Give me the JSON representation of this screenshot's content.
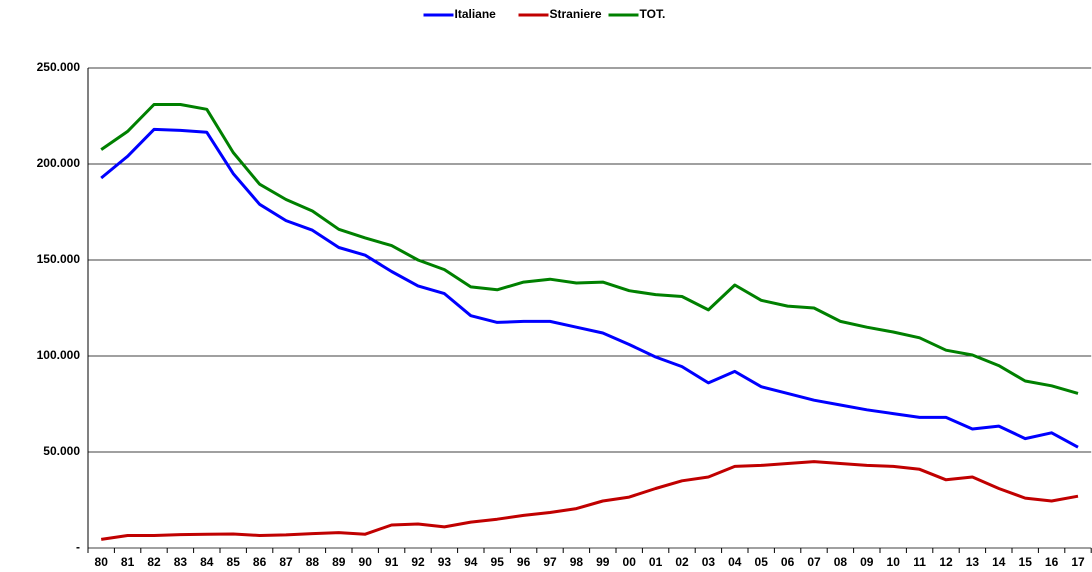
{
  "chart_data": {
    "type": "line",
    "categories": [
      "80",
      "81",
      "82",
      "83",
      "84",
      "85",
      "86",
      "87",
      "88",
      "89",
      "90",
      "91",
      "92",
      "93",
      "94",
      "95",
      "96",
      "97",
      "98",
      "99",
      "00",
      "01",
      "02",
      "03",
      "04",
      "05",
      "06",
      "07",
      "08",
      "09",
      "10",
      "11",
      "12",
      "13",
      "14",
      "15",
      "16",
      "17"
    ],
    "series": [
      {
        "name": "Italiane",
        "color": "#0000ff",
        "values": [
          192700,
          204000,
          218000,
          217500,
          216500,
          195000,
          179000,
          170500,
          165500,
          156500,
          152500,
          144000,
          136500,
          132500,
          121000,
          117500,
          118000,
          118000,
          115000,
          112000,
          106000,
          99500,
          94500,
          86000,
          92000,
          84000,
          80500,
          77000,
          74500,
          72000,
          70000,
          68000,
          68000,
          62000,
          63500,
          57000,
          60000,
          52500
        ]
      },
      {
        "name": "Straniere",
        "color": "#c00000",
        "values": [
          4500,
          6500,
          6500,
          7000,
          7200,
          7300,
          6500,
          6800,
          7500,
          8000,
          7200,
          12000,
          12500,
          11000,
          13500,
          15000,
          17000,
          18500,
          20500,
          24500,
          26500,
          31000,
          35000,
          37000,
          42500,
          43000,
          44000,
          45000,
          44000,
          43000,
          42500,
          41000,
          35500,
          37000,
          31000,
          26000,
          24500,
          27000
        ]
      },
      {
        "name": "TOT.",
        "color": "#008000",
        "values": [
          207500,
          217000,
          231000,
          231000,
          228500,
          206000,
          189500,
          181500,
          175500,
          166000,
          161500,
          157500,
          150000,
          145000,
          136000,
          134500,
          138500,
          140000,
          138000,
          138500,
          134000,
          132000,
          131000,
          124000,
          137000,
          129000,
          126000,
          125000,
          118000,
          115000,
          112500,
          109500,
          103000,
          100500,
          95000,
          87000,
          84500,
          80500
        ]
      }
    ],
    "ylim": [
      0,
      250000
    ],
    "yticks": [
      {
        "value": 0,
        "label": "-"
      },
      {
        "value": 50000,
        "label": "50.000"
      },
      {
        "value": 100000,
        "label": "100.000"
      },
      {
        "value": 150000,
        "label": "150.000"
      },
      {
        "value": 200000,
        "label": "200.000"
      },
      {
        "value": 250000,
        "label": "250.000"
      }
    ],
    "grid": true,
    "legend": "top"
  }
}
